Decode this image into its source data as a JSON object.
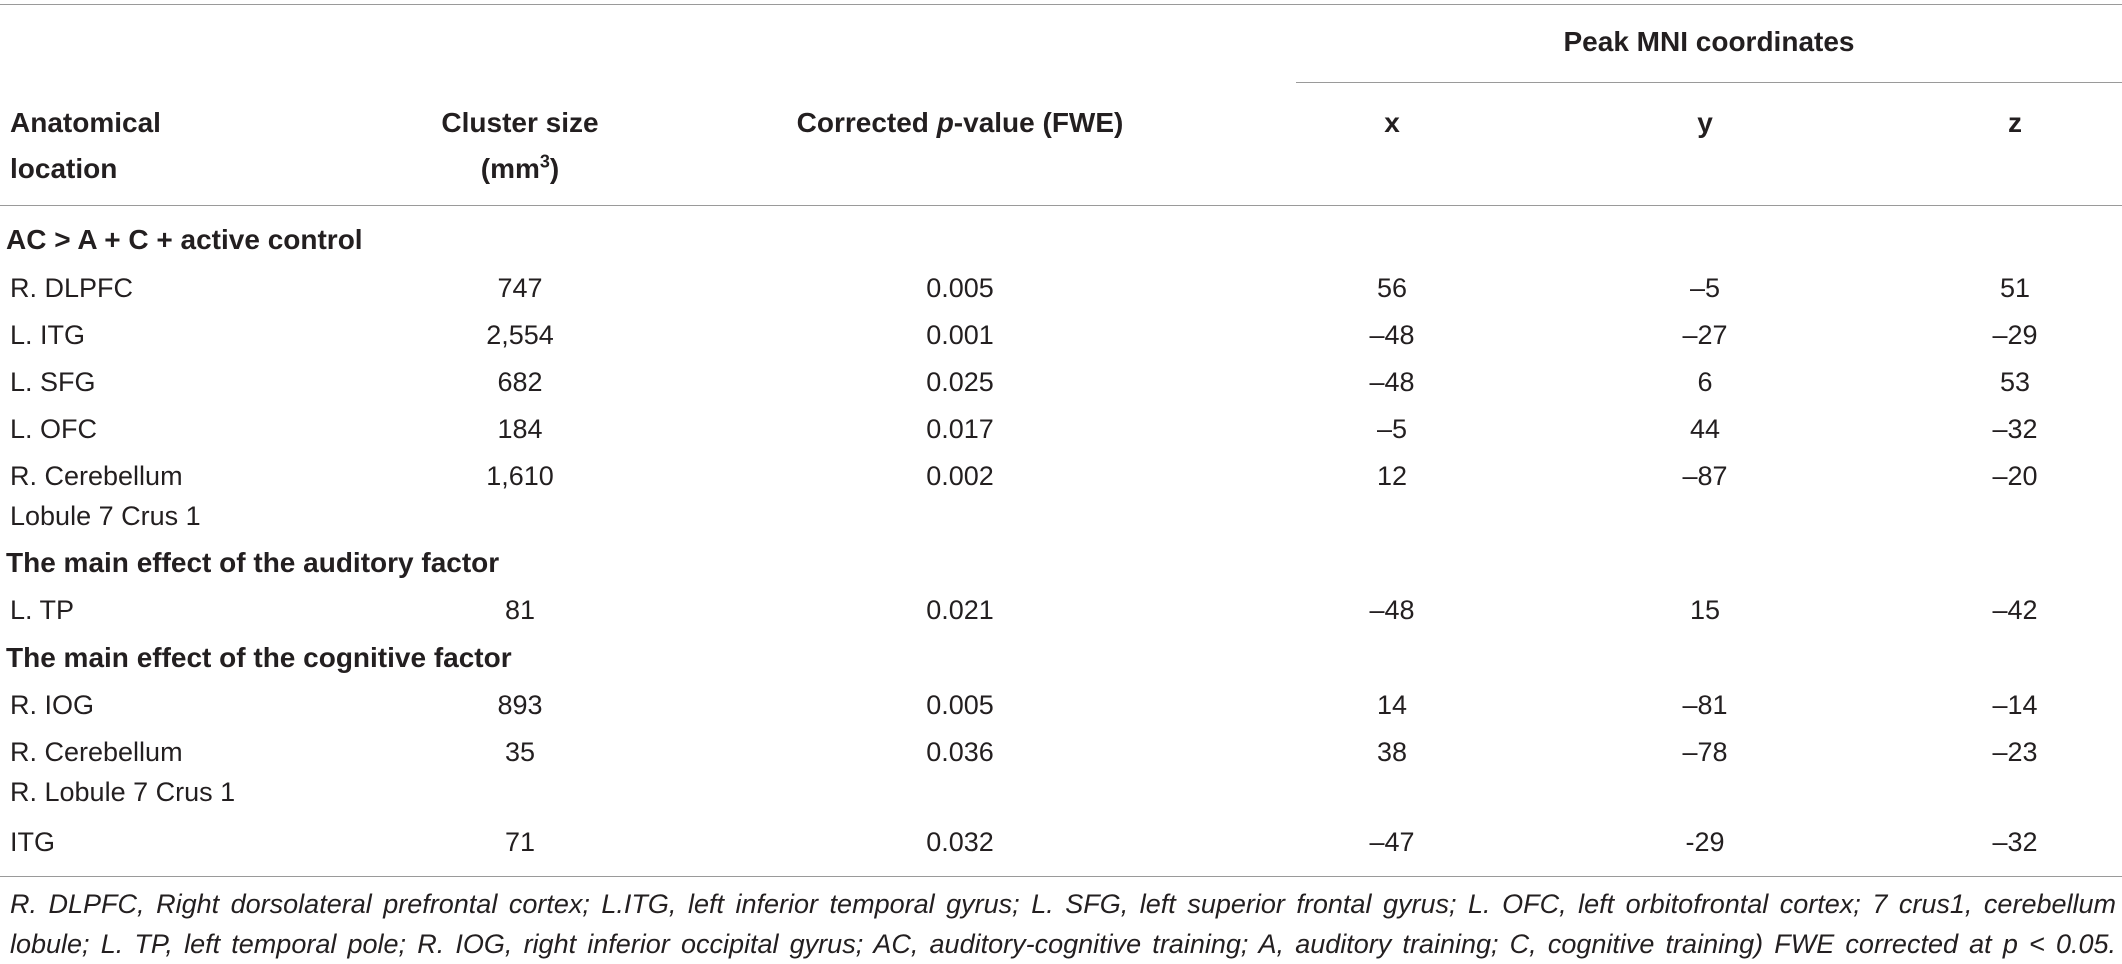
{
  "table": {
    "peak_header": "Peak MNI coordinates",
    "columns": {
      "anatomical_line1": "Anatomical",
      "anatomical_line2": "location",
      "cluster_line1": "Cluster size",
      "cluster_line2_base": "(mm",
      "cluster_line2_sup": "3",
      "cluster_line2_end": ")",
      "pval_pre": "Corrected ",
      "pval_italic": "p",
      "pval_post": "-value (FWE)",
      "x": "x",
      "y": "y",
      "z": "z"
    },
    "sections": [
      {
        "title": "AC > A + C + active control",
        "rows": [
          {
            "loc1": "R. DLPFC",
            "loc2": "",
            "cluster": "747",
            "p": "0.005",
            "x": "56",
            "y": "–5",
            "z": "51"
          },
          {
            "loc1": "L. ITG",
            "loc2": "",
            "cluster": "2,554",
            "p": "0.001",
            "x": "–48",
            "y": "–27",
            "z": "–29"
          },
          {
            "loc1": "L. SFG",
            "loc2": "",
            "cluster": "682",
            "p": "0.025",
            "x": "–48",
            "y": "6",
            "z": "53"
          },
          {
            "loc1": "L. OFC",
            "loc2": "",
            "cluster": "184",
            "p": "0.017",
            "x": "–5",
            "y": "44",
            "z": "–32"
          },
          {
            "loc1": "R. Cerebellum",
            "loc2": "Lobule 7 Crus 1",
            "cluster": "1,610",
            "p": "0.002",
            "x": "12",
            "y": "–87",
            "z": "–20"
          }
        ]
      },
      {
        "title": "The main effect of the auditory factor",
        "rows": [
          {
            "loc1": "L. TP",
            "loc2": "",
            "cluster": "81",
            "p": "0.021",
            "x": "–48",
            "y": "15",
            "z": "–42"
          }
        ]
      },
      {
        "title": "The main effect of the cognitive factor",
        "rows": [
          {
            "loc1": "R. IOG",
            "loc2": "",
            "cluster": "893",
            "p": "0.005",
            "x": "14",
            "y": "–81",
            "z": "–14"
          },
          {
            "loc1": "R. Cerebellum",
            "loc2": "R. Lobule 7 Crus 1",
            "cluster": "35",
            "p": "0.036",
            "x": "38",
            "y": "–78",
            "z": "–23"
          },
          {
            "loc1": "ITG",
            "loc2": "",
            "cluster": "71",
            "p": "0.032",
            "x": "–47",
            "y": "-29",
            "z": "–32"
          }
        ]
      }
    ],
    "footnote_line1": "R. DLPFC, Right dorsolateral prefrontal cortex; L.ITG, left inferior temporal gyrus; L. SFG, left superior frontal gyrus; L. OFC, left orbitofrontal cortex; 7 crus1, cerebellum",
    "footnote_line2": "lobule; L. TP, left temporal pole; R. IOG, right inferior occipital gyrus; AC, auditory-cognitive training; A, auditory training; C, cognitive training) FWE corrected at p < 0.05."
  }
}
